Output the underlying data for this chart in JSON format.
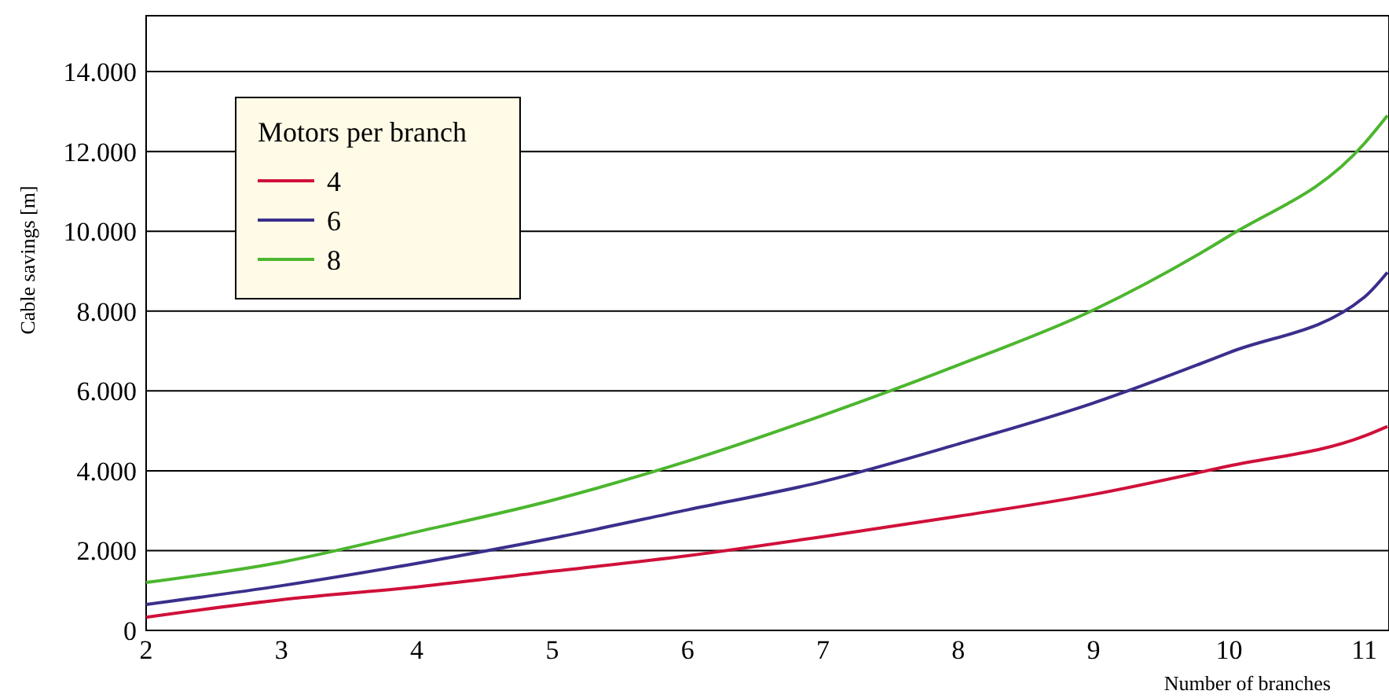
{
  "chart_data": {
    "type": "line",
    "xlabel": "Number of branches",
    "ylabel": "Cable savings [m]",
    "legend_title": "Motors per branch",
    "legend": "top left",
    "grid": "y",
    "line_style": "solid",
    "xlim": [
      2,
      11.17
    ],
    "ylim": [
      0,
      15400
    ],
    "xticks": [
      2,
      3,
      4,
      5,
      6,
      7,
      8,
      9,
      10,
      11
    ],
    "yticks": [
      0,
      {
        "value": 2000,
        "label": "2.000"
      },
      {
        "value": 4000,
        "label": "4.000"
      },
      {
        "value": 6000,
        "label": "6.000"
      },
      {
        "value": 8000,
        "label": "8.000"
      },
      {
        "value": 10000,
        "label": "10.000"
      },
      {
        "value": 12000,
        "label": "12.000"
      },
      {
        "value": 14000,
        "label": "14.000"
      }
    ],
    "x": [
      2,
      3,
      4,
      5,
      6,
      7,
      8,
      9,
      10,
      11,
      11.17
    ],
    "series": [
      {
        "name": "4",
        "color": "#d0103a",
        "values": [
          330,
          770,
          1090,
          1480,
          1870,
          2350,
          2860,
          3410,
          4120,
          4870,
          5110
        ]
      },
      {
        "name": "6",
        "color": "#3a2f8c",
        "values": [
          650,
          1120,
          1680,
          2310,
          3020,
          3730,
          4670,
          5700,
          6960,
          8350,
          8970
        ]
      },
      {
        "name": "8",
        "color": "#4cb62e",
        "values": [
          1200,
          1710,
          2470,
          3260,
          4240,
          5390,
          6650,
          8030,
          9880,
          12200,
          12900
        ]
      }
    ]
  }
}
